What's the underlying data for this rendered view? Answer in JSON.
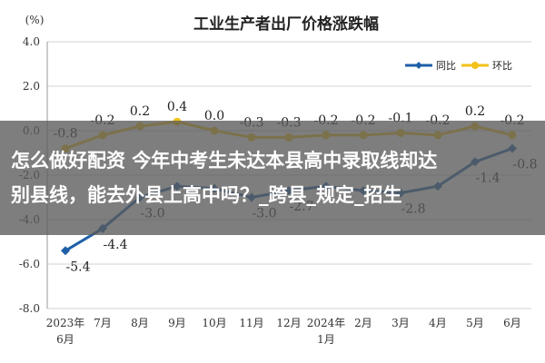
{
  "overlay": {
    "headline_line1": "怎么做好配资 今年中考生未达本县高中录取线却达",
    "headline_line2": "别县线，能去外县上高中吗？_跨县_规定_招生"
  },
  "chart_data": {
    "type": "line",
    "title": "工业生产者出厂价格涨跌幅",
    "ylabel": "(%)",
    "categories": [
      "2023年\n6月",
      "7月",
      "8月",
      "9月",
      "10月",
      "11月",
      "12月",
      "2024年\n1月",
      "2月",
      "3月",
      "4月",
      "5月",
      "6月"
    ],
    "yticks": [
      "4.0",
      "2.0",
      "0.0",
      "-2.0",
      "-4.0",
      "-6.0",
      "-8.0"
    ],
    "ylim": [
      -8,
      4
    ],
    "grid": true,
    "legend_position": "top-right",
    "series": [
      {
        "name": "同比",
        "color": "#1f5fa8",
        "values": [
          -5.4,
          -4.4,
          -3.0,
          -2.5,
          -2.6,
          -3.0,
          -2.7,
          -2.5,
          -2.7,
          -2.8,
          -2.5,
          -1.4,
          -0.8
        ],
        "labels": [
          "-5.4",
          "-4.4",
          "-3.0",
          "",
          "",
          "-3.0",
          "-2.7",
          "",
          "",
          "-2.8",
          "",
          "-1.4",
          "-0.8"
        ]
      },
      {
        "name": "环比",
        "color": "#f2c21a",
        "values": [
          -0.8,
          -0.2,
          0.2,
          0.4,
          0.0,
          -0.3,
          -0.3,
          -0.2,
          -0.2,
          -0.1,
          -0.2,
          0.2,
          -0.2
        ],
        "labels": [
          "-0.8",
          "-0.2",
          "0.2",
          "0.4",
          "0.0",
          "-0.3",
          "-0.3",
          "-0.2",
          "-0.2",
          "-0.1",
          "-0.2",
          "0.2",
          "-0.2"
        ]
      }
    ]
  }
}
